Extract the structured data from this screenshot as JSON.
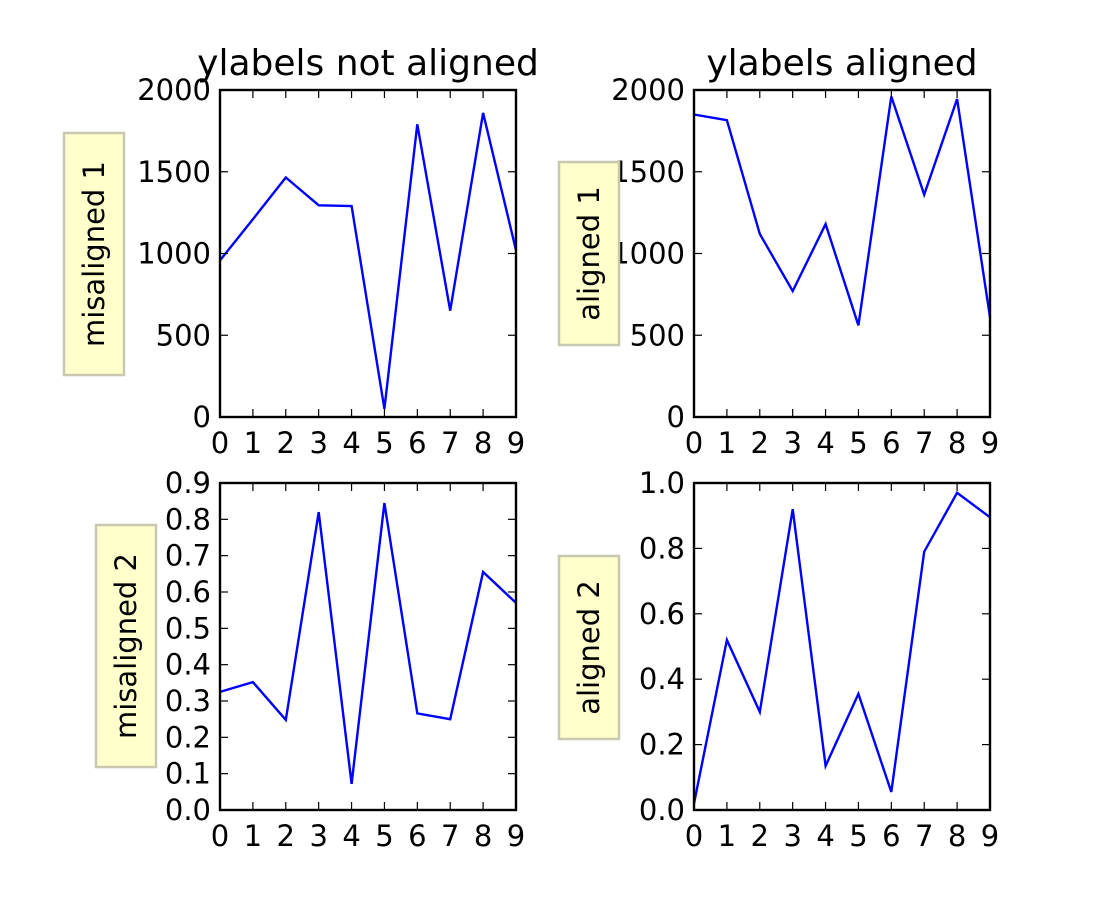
{
  "colors": {
    "line": "#0000ff",
    "label_box": "#ffffcc"
  },
  "chart_data": [
    {
      "type": "line",
      "title": "ylabels not aligned",
      "ylabel": "misaligned 1",
      "x": [
        0,
        1,
        2,
        3,
        4,
        5,
        6,
        7,
        8,
        9
      ],
      "series": [
        {
          "values": [
            958,
            1210,
            1465,
            1295,
            1290,
            50,
            1790,
            650,
            1860,
            1020
          ]
        }
      ],
      "xlim": [
        0,
        9
      ],
      "ylim": [
        0,
        2000
      ],
      "xticks": [
        0,
        1,
        2,
        3,
        4,
        5,
        6,
        7,
        8,
        9
      ],
      "yticks": [
        0,
        500,
        1000,
        1500,
        2000
      ],
      "xtick_labels": [
        "0",
        "1",
        "2",
        "3",
        "4",
        "5",
        "6",
        "7",
        "8",
        "9"
      ],
      "ytick_labels": [
        "0",
        "500",
        "1000",
        "1500",
        "2000"
      ],
      "grid": false
    },
    {
      "type": "line",
      "title": "ylabels aligned",
      "ylabel": "aligned 1",
      "x": [
        0,
        1,
        2,
        3,
        4,
        5,
        6,
        7,
        8,
        9
      ],
      "series": [
        {
          "values": [
            1850,
            1815,
            1120,
            770,
            1180,
            560,
            1960,
            1360,
            1945,
            610
          ]
        }
      ],
      "xlim": [
        0,
        9
      ],
      "ylim": [
        0,
        2000
      ],
      "xticks": [
        0,
        1,
        2,
        3,
        4,
        5,
        6,
        7,
        8,
        9
      ],
      "yticks": [
        0,
        500,
        1000,
        1500,
        2000
      ],
      "xtick_labels": [
        "0",
        "1",
        "2",
        "3",
        "4",
        "5",
        "6",
        "7",
        "8",
        "9"
      ],
      "ytick_labels": [
        "0",
        "500",
        "1000",
        "1500",
        "2000"
      ],
      "grid": false
    },
    {
      "type": "line",
      "title": "",
      "ylabel": "misaligned 2",
      "x": [
        0,
        1,
        2,
        3,
        4,
        5,
        6,
        7,
        8,
        9
      ],
      "series": [
        {
          "values": [
            0.325,
            0.352,
            0.248,
            0.82,
            0.072,
            0.845,
            0.266,
            0.25,
            0.655,
            0.57
          ]
        }
      ],
      "xlim": [
        0,
        9
      ],
      "ylim": [
        0,
        0.9
      ],
      "xticks": [
        0,
        1,
        2,
        3,
        4,
        5,
        6,
        7,
        8,
        9
      ],
      "yticks": [
        0,
        0.1,
        0.2,
        0.3,
        0.4,
        0.5,
        0.6,
        0.7,
        0.8,
        0.9
      ],
      "xtick_labels": [
        "0",
        "1",
        "2",
        "3",
        "4",
        "5",
        "6",
        "7",
        "8",
        "9"
      ],
      "ytick_labels": [
        "0.0",
        "0.1",
        "0.2",
        "0.3",
        "0.4",
        "0.5",
        "0.6",
        "0.7",
        "0.8",
        "0.9"
      ],
      "grid": false
    },
    {
      "type": "line",
      "title": "",
      "ylabel": "aligned 2",
      "x": [
        0,
        1,
        2,
        3,
        4,
        5,
        6,
        7,
        8,
        9
      ],
      "series": [
        {
          "values": [
            0.02,
            0.52,
            0.3,
            0.92,
            0.135,
            0.355,
            0.055,
            0.79,
            0.97,
            0.895
          ]
        }
      ],
      "xlim": [
        0,
        9
      ],
      "ylim": [
        0,
        1.0
      ],
      "xticks": [
        0,
        1,
        2,
        3,
        4,
        5,
        6,
        7,
        8,
        9
      ],
      "yticks": [
        0,
        0.2,
        0.4,
        0.6,
        0.8,
        1.0
      ],
      "xtick_labels": [
        "0",
        "1",
        "2",
        "3",
        "4",
        "5",
        "6",
        "7",
        "8",
        "9"
      ],
      "ytick_labels": [
        "0.0",
        "0.2",
        "0.4",
        "0.6",
        "0.8",
        "1.0"
      ],
      "grid": false
    }
  ]
}
